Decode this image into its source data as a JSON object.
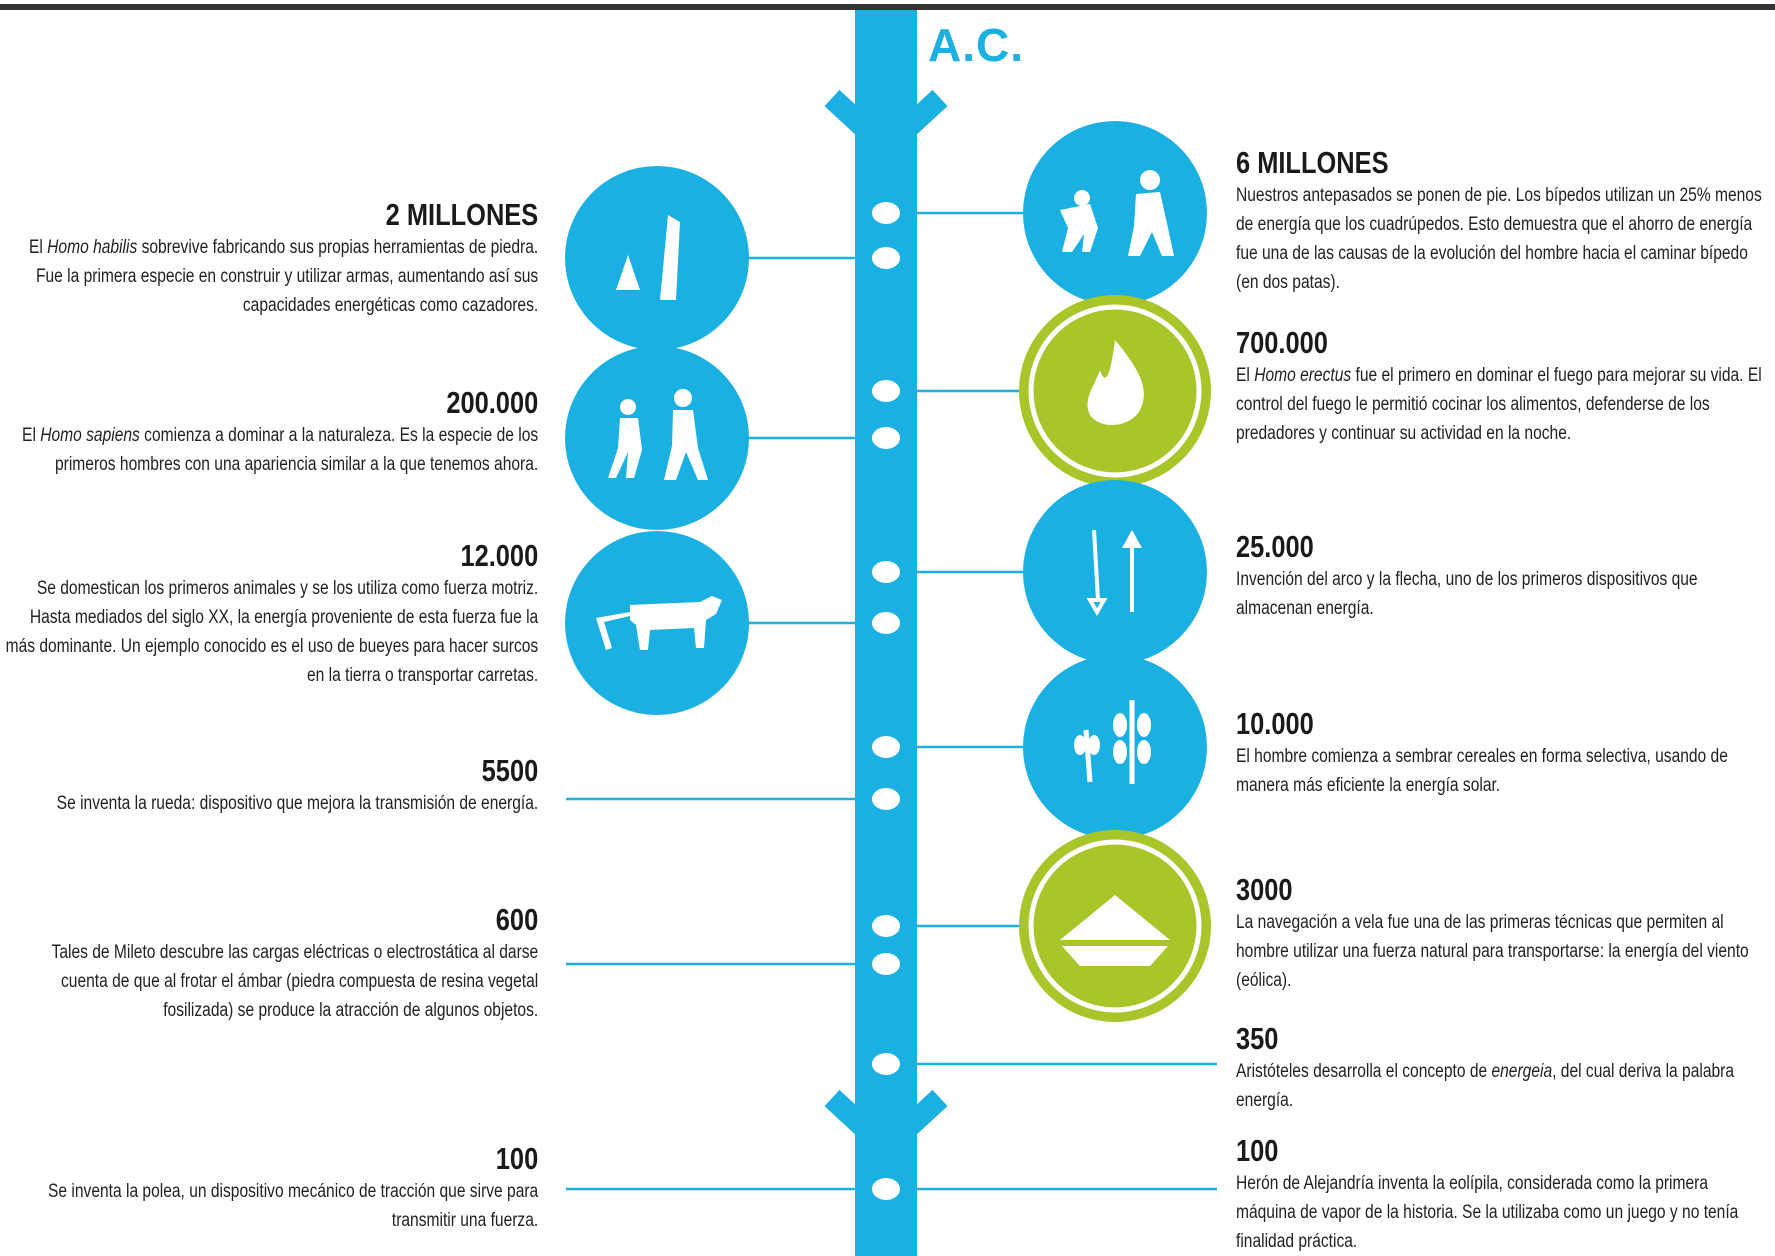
{
  "header": "A.C.",
  "left": [
    {
      "title": "2 MILLONES",
      "body": [
        {
          "text": "El "
        },
        {
          "text": "Homo habilis",
          "em": true
        },
        {
          "text": " sobrevive fabricando sus propias herramientas de piedra. Fue la primera especie en construir y utilizar armas, aumentando así sus capacidades energéticas como cazadores."
        }
      ]
    },
    {
      "title": "200.000",
      "body": [
        {
          "text": "El "
        },
        {
          "text": "Homo sapiens",
          "em": true
        },
        {
          "text": " comienza a dominar a la naturaleza. Es la especie de los primeros hombres con una apariencia similar a la que tenemos ahora."
        }
      ]
    },
    {
      "title": "12.000",
      "body": [
        {
          "text": "Se domestican los primeros animales y se los utiliza como fuerza motriz. Hasta mediados del siglo XX, la energía proveniente de esta fuerza fue la más dominante. Un ejemplo conocido es el uso de bueyes para hacer surcos en la tierra o transportar carretas."
        }
      ]
    },
    {
      "title": "5500",
      "body": [
        {
          "text": "Se inventa la rueda: dispositivo que mejora la transmisión de energía."
        }
      ]
    },
    {
      "title": "600",
      "body": [
        {
          "text": "Tales de Mileto descubre las cargas eléctricas o electrostática al darse cuenta de que al frotar el ámbar (piedra compuesta de resina vegetal fosilizada) se produce la atracción de algunos objetos."
        }
      ]
    },
    {
      "title": "100",
      "body": [
        {
          "text": "Se inventa la polea, un dispositivo mecánico de tracción que sirve para transmitir una fuerza."
        }
      ]
    }
  ],
  "right": [
    {
      "title": "6 MILLONES",
      "body": [
        {
          "text": "Nuestros antepasados se ponen de pie. Los bípedos utilizan un 25% menos de energía que los cuadrúpedos. Esto demuestra que el ahorro de energía fue una de las causas de la evolución del hombre hacia el caminar bípedo (en dos patas)."
        }
      ]
    },
    {
      "title": "700.000",
      "body": [
        {
          "text": "El "
        },
        {
          "text": "Homo erectus",
          "em": true
        },
        {
          "text": " fue el primero en dominar el fuego para mejorar su vida. El control del fuego le permitió cocinar los alimentos, defenderse de los predadores y continuar su actividad en la noche."
        }
      ]
    },
    {
      "title": "25.000",
      "body": [
        {
          "text": "Invención del arco y la flecha, uno de los primeros dispositivos que almacenan energía."
        }
      ]
    },
    {
      "title": "10.000",
      "body": [
        {
          "text": "El hombre comienza a sembrar cereales en forma selectiva, usando de manera más eficiente la energía solar."
        }
      ]
    },
    {
      "title": "3000",
      "body": [
        {
          "text": "La navegación a vela fue una de las primeras técnicas que permiten al hombre utilizar una fuerza natural para transportarse: la energía del viento (eólica)."
        }
      ]
    },
    {
      "title": "350",
      "body": [
        {
          "text": "Aristóteles desarrolla el concepto de "
        },
        {
          "text": "energeia",
          "em": true
        },
        {
          "text": ", del cual deriva la palabra energía."
        }
      ]
    },
    {
      "title": "100",
      "body": [
        {
          "text": "Herón de Alejandría inventa la eolípila, considerada como la primera máquina de vapor de la historia. Se la utilizaba como un juego y no tenía finalidad práctica."
        }
      ]
    }
  ]
}
